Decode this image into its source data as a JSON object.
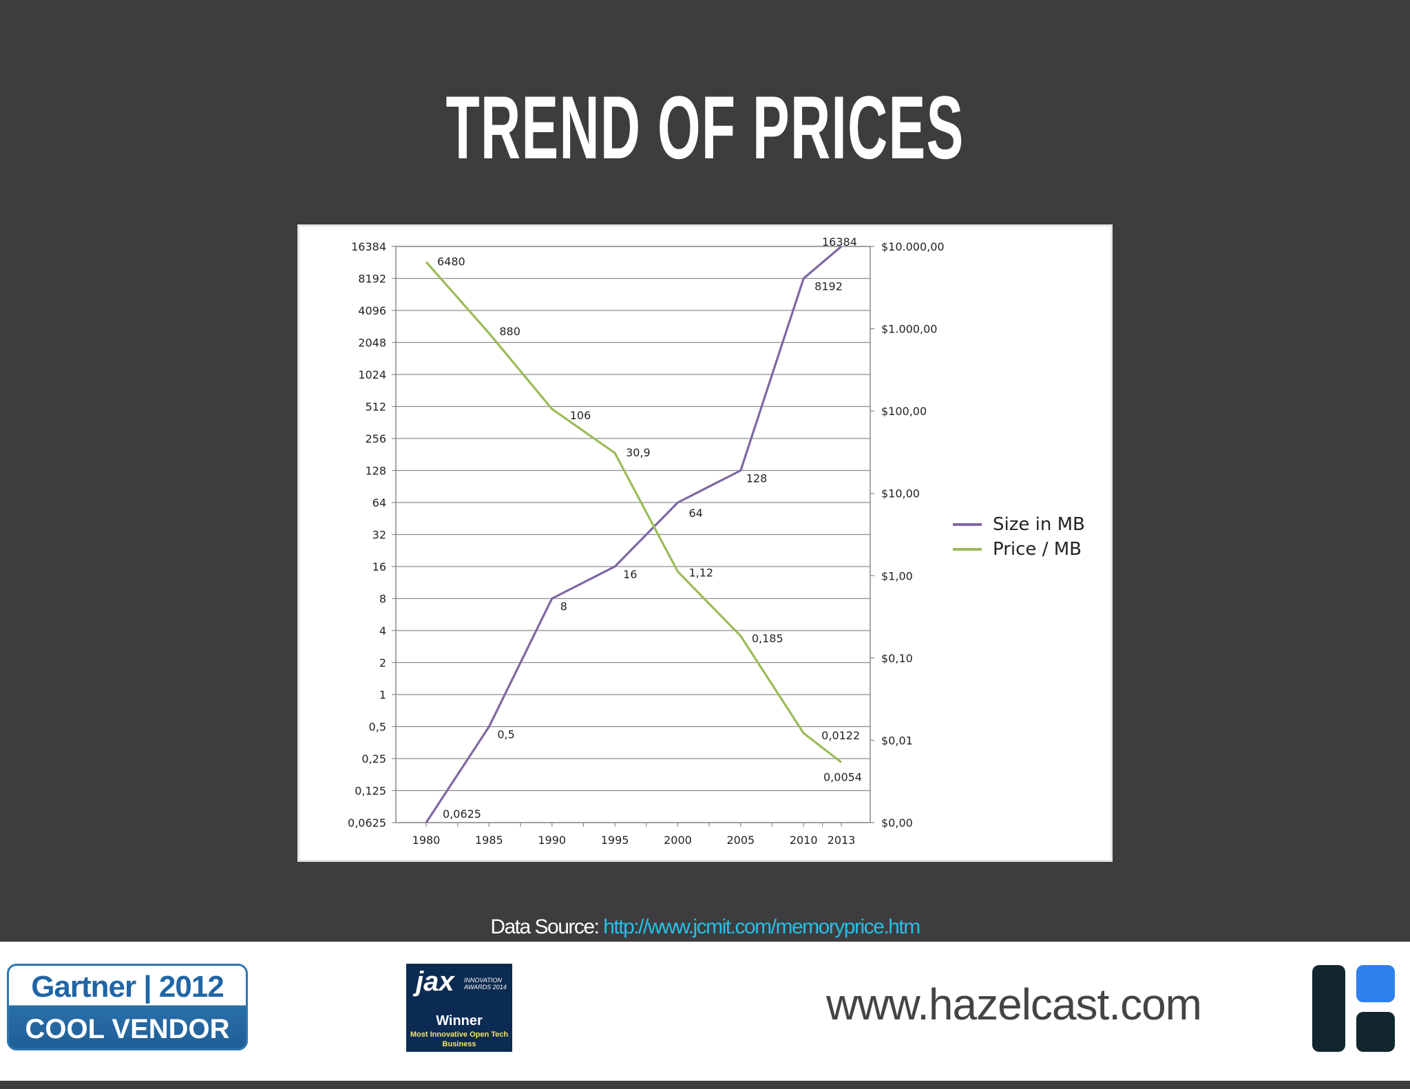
{
  "title": "TREND OF PRICES",
  "chart_data": {
    "type": "line",
    "x": [
      1980,
      1985,
      1990,
      1995,
      2000,
      2005,
      2010,
      2013
    ],
    "x_tick_labels": [
      "1980",
      "1985",
      "1990",
      "1995",
      "2000",
      "2005",
      "2010",
      "2013"
    ],
    "y_left_scale": "log2",
    "y_left_ticks": [
      "16384",
      "8192",
      "4096",
      "2048",
      "1024",
      "512",
      "256",
      "128",
      "64",
      "32",
      "16",
      "8",
      "4",
      "2",
      "1",
      "0,5",
      "0,25",
      "0,125",
      "0,0625"
    ],
    "y_left_range": [
      0.0625,
      16384
    ],
    "y_right_scale": "log10",
    "y_right_ticks": [
      "$10.000,00",
      "$1.000,00",
      "$100,00",
      "$10,00",
      "$1,00",
      "$0,10",
      "$0,01",
      "$0,00"
    ],
    "y_right_range": [
      0.001,
      10000
    ],
    "grid": true,
    "legend_position": "right",
    "series": [
      {
        "name": "Size in MB",
        "axis": "left",
        "color": "#7f67a3",
        "values": [
          0.0625,
          0.5,
          8,
          16,
          64,
          128,
          8192,
          16384
        ],
        "labels": [
          "0,0625",
          "0,5",
          "8",
          "16",
          "64",
          "128",
          "8192",
          "16384"
        ]
      },
      {
        "name": "Price / MB",
        "axis": "right",
        "color": "#9bbb59",
        "values": [
          6480,
          880,
          106,
          30.9,
          1.12,
          0.185,
          0.0122,
          0.0054
        ],
        "labels": [
          "6480",
          "880",
          "106",
          "30,9",
          "1,12",
          "0,185",
          "0,0122",
          "0,0054"
        ]
      }
    ]
  },
  "source": {
    "prefix": "Data Source: ",
    "link": "http://www.jcmit.com/memoryprice.htm"
  },
  "footer": {
    "gartner_top": "Gartner | 2012",
    "gartner_bottom": "COOL VENDOR",
    "jax_logo": "jax",
    "jax_sub": "INNOVATION AWARDS 2014",
    "jax_winner": "Winner",
    "jax_desc": "Most Innovative Open Tech Business",
    "url": "www.hazelcast.com"
  }
}
